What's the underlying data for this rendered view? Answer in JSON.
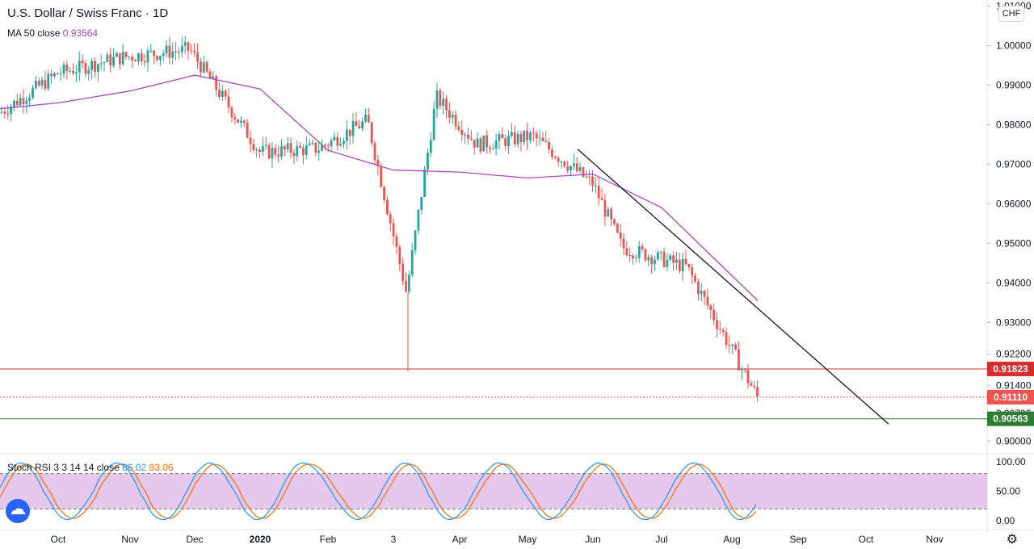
{
  "header": {
    "symbol": "U.S. Dollar / Swiss Franc · 1D",
    "ma_label": "MA 50 close",
    "ma_value": "0.93564",
    "currency_button": "CHF"
  },
  "indicator": {
    "label": "Stoch RSI 3 3 14 14 close",
    "k_value": "86.02",
    "d_value": "93.06"
  },
  "colors": {
    "up": "#26a69a",
    "down": "#ef5350",
    "ma": "#ab47bc",
    "stoch_k": "#2196f3",
    "stoch_d": "#ff6d00",
    "stoch_band": "#e1bee7",
    "resistance_line": "#d32f2f",
    "support_line": "#2e7d32"
  },
  "chart_data": {
    "type": "candlestick",
    "price_axis": {
      "ticks": [
        "1.01000",
        "1.00000",
        "0.99000",
        "0.98000",
        "0.97000",
        "0.96000",
        "0.95000",
        "0.94000",
        "0.93000",
        "0.92200",
        "0.91400",
        "0.90700",
        "0.90000"
      ],
      "range": [
        0.8968,
        1.0115
      ]
    },
    "x_axis_ticks": [
      "Oct",
      "Nov",
      "Dec",
      "2020",
      "Feb",
      "3",
      "Apr",
      "May",
      "Jun",
      "Jul",
      "Aug",
      "Sep",
      "Oct",
      "Nov"
    ],
    "price_labels": [
      {
        "value": "0.91823",
        "color": "#d32f2f"
      },
      {
        "value": "0.91110",
        "color": "#ef5350"
      },
      {
        "value": "0.90563",
        "color": "#2e7d32"
      }
    ],
    "horizontal_levels": [
      {
        "value": 0.91823,
        "style": "solid",
        "color": "#d32f2f"
      },
      {
        "value": 0.9111,
        "style": "dotted",
        "color": "#ef5350"
      },
      {
        "value": 0.90563,
        "style": "solid",
        "color": "#2e7d32"
      }
    ],
    "trendline": {
      "start": [
        "late May",
        0.9738
      ],
      "end": [
        "mid Oct",
        0.9043
      ]
    },
    "ma50": [
      [
        "Sep",
        0.984
      ],
      [
        "Oct",
        0.9855
      ],
      [
        "Nov",
        0.9885
      ],
      [
        "Dec",
        0.9925
      ],
      [
        "Jan",
        0.989
      ],
      [
        "Feb",
        0.9735
      ],
      [
        "Mar",
        0.9685
      ],
      [
        "Apr",
        0.968
      ],
      [
        "May",
        0.9665
      ],
      [
        "Jun",
        0.9675
      ],
      [
        "Jul",
        0.959
      ],
      [
        "Aug",
        0.9355
      ]
    ],
    "price_path": [
      [
        "Sep",
        0.983
      ],
      [
        "Oct",
        0.993
      ],
      [
        "Nov",
        0.997
      ],
      [
        "Dec",
        0.999
      ],
      [
        "Jan",
        0.973
      ],
      [
        "Feb",
        0.974
      ],
      [
        "Feb",
        0.981
      ],
      [
        "Mar",
        0.9375
      ],
      [
        "Mar",
        0.987
      ],
      [
        "Apr",
        0.975
      ],
      [
        "May",
        0.977
      ],
      [
        "Jun",
        0.965
      ],
      [
        "Jun",
        0.949
      ],
      [
        "Jul",
        0.944
      ],
      [
        "Aug",
        0.911
      ]
    ],
    "stoch_rsi": {
      "levels": [
        0,
        20,
        80,
        100
      ],
      "ticks": [
        "100.00",
        "50.00",
        "0.00"
      ]
    }
  }
}
